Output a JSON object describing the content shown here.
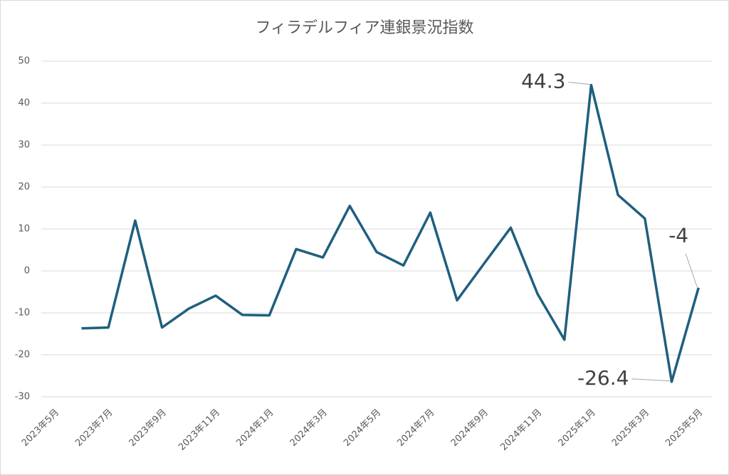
{
  "chart_data": {
    "type": "line",
    "title": "フィラデルフィア連銀景況指数",
    "categories": [
      "2023年5月",
      null,
      "2023年7月",
      null,
      "2023年9月",
      null,
      "2023年11月",
      null,
      "2024年1月",
      null,
      "2024年3月",
      null,
      "2024年5月",
      null,
      "2024年7月",
      null,
      "2024年9月",
      null,
      "2024年11月",
      null,
      "2025年1月",
      null,
      "2025年3月",
      null,
      "2025年5月"
    ],
    "values": [
      null,
      -13.7,
      -13.5,
      12.0,
      -13.5,
      -9.0,
      -5.9,
      -10.5,
      -10.6,
      5.2,
      3.2,
      15.5,
      4.5,
      1.3,
      13.9,
      -7.0,
      1.7,
      10.3,
      -5.5,
      -16.4,
      44.3,
      18.1,
      12.5,
      -26.4,
      -4
    ],
    "value_labels": [
      null,
      null,
      null,
      null,
      null,
      null,
      null,
      null,
      null,
      null,
      null,
      null,
      null,
      null,
      null,
      null,
      null,
      null,
      null,
      null,
      "44.3",
      null,
      null,
      "-26.4",
      "-4"
    ],
    "color": "#1f5f7f",
    "ylim": [
      -30,
      50
    ],
    "yticks": [
      -30,
      -20,
      -10,
      0,
      10,
      20,
      30,
      40,
      50
    ],
    "grid": true
  }
}
